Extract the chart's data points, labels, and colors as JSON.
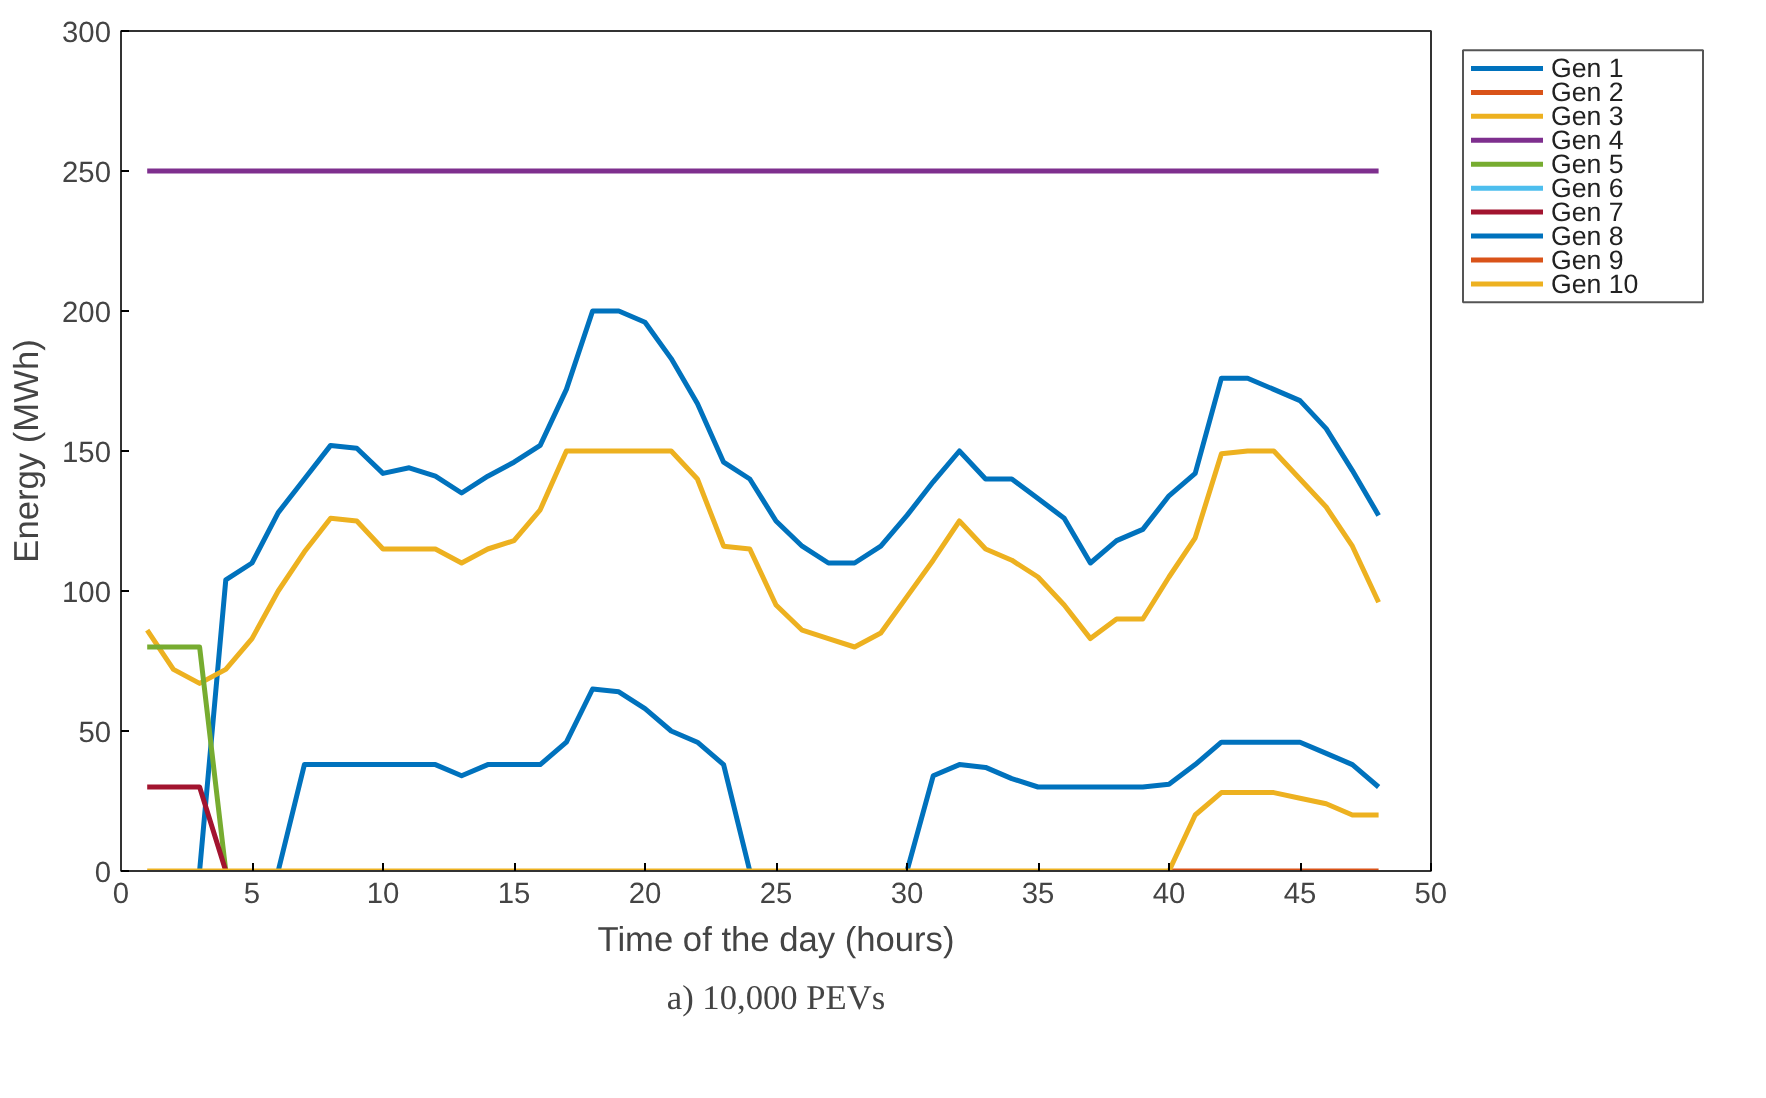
{
  "chart_data": {
    "type": "line",
    "xlabel": "Time of the day (hours)",
    "ylabel": "Energy (MWh)",
    "annotations": [
      "a) 10,000 PEVs"
    ],
    "x": [
      1,
      2,
      3,
      4,
      5,
      6,
      7,
      8,
      9,
      10,
      11,
      12,
      13,
      14,
      15,
      16,
      17,
      18,
      19,
      20,
      21,
      22,
      23,
      24,
      25,
      26,
      27,
      28,
      29,
      30,
      31,
      32,
      33,
      34,
      35,
      36,
      37,
      38,
      39,
      40,
      41,
      42,
      43,
      44,
      45,
      46,
      47,
      48
    ],
    "xlim": [
      0,
      50
    ],
    "xticks": [
      0,
      5,
      10,
      15,
      20,
      25,
      30,
      35,
      40,
      45,
      50
    ],
    "ylim": [
      0,
      300
    ],
    "yticks": [
      0,
      50,
      100,
      150,
      200,
      250,
      300
    ],
    "grid": false,
    "legend": "right",
    "line_style": "solid",
    "marker": "none",
    "series": [
      {
        "name": "Gen 1",
        "color": "#0072bd",
        "values": [
          null,
          null,
          0,
          104,
          110,
          128,
          140,
          152,
          151,
          142,
          144,
          141,
          135,
          141,
          146,
          152,
          172,
          200,
          200,
          196,
          183,
          167,
          146,
          140,
          125,
          116,
          110,
          110,
          116,
          127,
          139,
          150,
          140,
          140,
          133,
          126,
          110,
          118,
          122,
          134,
          142,
          176,
          176,
          172,
          168,
          158,
          143,
          127
        ]
      },
      {
        "name": "Gen 2",
        "color": "#d95319",
        "values": [
          null,
          null,
          null,
          null,
          null,
          null,
          null,
          null,
          null,
          null,
          null,
          null,
          null,
          null,
          null,
          null,
          null,
          null,
          null,
          null,
          null,
          null,
          null,
          null,
          null,
          null,
          null,
          null,
          null,
          null,
          null,
          null,
          null,
          null,
          null,
          null,
          null,
          null,
          null,
          null,
          null,
          null,
          null,
          null,
          null,
          null,
          null,
          null
        ]
      },
      {
        "name": "Gen 3",
        "color": "#edb120",
        "values": [
          86,
          72,
          67,
          72,
          83,
          100,
          114,
          126,
          125,
          115,
          115,
          115,
          110,
          115,
          118,
          129,
          150,
          150,
          150,
          150,
          150,
          140,
          116,
          115,
          95,
          86,
          83,
          80,
          85,
          98,
          111,
          125,
          115,
          111,
          105,
          95,
          83,
          90,
          90,
          105,
          119,
          149,
          150,
          150,
          140,
          130,
          116,
          96
        ]
      },
      {
        "name": "Gen 4",
        "color": "#7e2f8e",
        "values": [
          250,
          250,
          250,
          250,
          250,
          250,
          250,
          250,
          250,
          250,
          250,
          250,
          250,
          250,
          250,
          250,
          250,
          250,
          250,
          250,
          250,
          250,
          250,
          250,
          250,
          250,
          250,
          250,
          250,
          250,
          250,
          250,
          250,
          250,
          250,
          250,
          250,
          250,
          250,
          250,
          250,
          250,
          250,
          250,
          250,
          250,
          250,
          250
        ]
      },
      {
        "name": "Gen 5",
        "color": "#77ac30",
        "values": [
          80,
          80,
          80,
          0,
          null,
          null,
          null,
          null,
          null,
          null,
          null,
          null,
          null,
          null,
          null,
          null,
          null,
          null,
          null,
          null,
          null,
          null,
          null,
          null,
          null,
          null,
          null,
          null,
          null,
          null,
          null,
          null,
          null,
          null,
          null,
          null,
          null,
          null,
          null,
          null,
          null,
          null,
          null,
          null,
          null,
          null,
          null,
          null
        ]
      },
      {
        "name": "Gen 6",
        "color": "#4dbeee",
        "values": [
          null,
          null,
          null,
          null,
          null,
          null,
          null,
          null,
          null,
          null,
          null,
          null,
          null,
          null,
          null,
          null,
          null,
          null,
          null,
          null,
          null,
          null,
          null,
          null,
          null,
          null,
          null,
          null,
          null,
          null,
          null,
          null,
          null,
          null,
          null,
          null,
          null,
          null,
          null,
          null,
          null,
          null,
          null,
          null,
          null,
          null,
          null,
          null
        ]
      },
      {
        "name": "Gen 7",
        "color": "#a2142f",
        "values": [
          30,
          30,
          30,
          0,
          null,
          null,
          null,
          null,
          null,
          null,
          null,
          null,
          null,
          null,
          null,
          null,
          null,
          null,
          null,
          null,
          null,
          null,
          null,
          null,
          null,
          null,
          null,
          null,
          null,
          null,
          null,
          null,
          null,
          null,
          null,
          null,
          null,
          null,
          null,
          null,
          null,
          null,
          null,
          null,
          null,
          null,
          null,
          null
        ]
      },
      {
        "name": "Gen 8",
        "color": "#0072bd",
        "values": [
          null,
          null,
          null,
          null,
          null,
          0,
          38,
          38,
          38,
          38,
          38,
          38,
          34,
          38,
          38,
          38,
          46,
          65,
          64,
          58,
          50,
          46,
          38,
          0,
          null,
          null,
          null,
          null,
          null,
          0,
          34,
          38,
          37,
          33,
          30,
          30,
          30,
          30,
          30,
          31,
          38,
          46,
          46,
          46,
          46,
          42,
          38,
          30
        ]
      },
      {
        "name": "Gen 9",
        "color": "#d95319",
        "values": [
          null,
          null,
          null,
          null,
          null,
          null,
          null,
          null,
          null,
          null,
          null,
          null,
          null,
          null,
          null,
          null,
          null,
          null,
          null,
          null,
          null,
          null,
          null,
          null,
          null,
          null,
          null,
          null,
          null,
          null,
          null,
          null,
          null,
          null,
          null,
          null,
          null,
          null,
          null,
          0,
          0,
          0,
          0,
          0,
          0,
          0,
          0,
          0
        ]
      },
      {
        "name": "Gen 10",
        "color": "#edb120",
        "values": [
          0,
          0,
          0,
          0,
          0,
          0,
          0,
          0,
          0,
          0,
          0,
          0,
          0,
          0,
          0,
          0,
          0,
          0,
          0,
          0,
          0,
          0,
          0,
          0,
          0,
          0,
          0,
          0,
          0,
          0,
          0,
          0,
          0,
          0,
          0,
          0,
          0,
          0,
          0,
          0,
          20,
          28,
          28,
          28,
          26,
          24,
          20,
          20
        ]
      }
    ]
  }
}
